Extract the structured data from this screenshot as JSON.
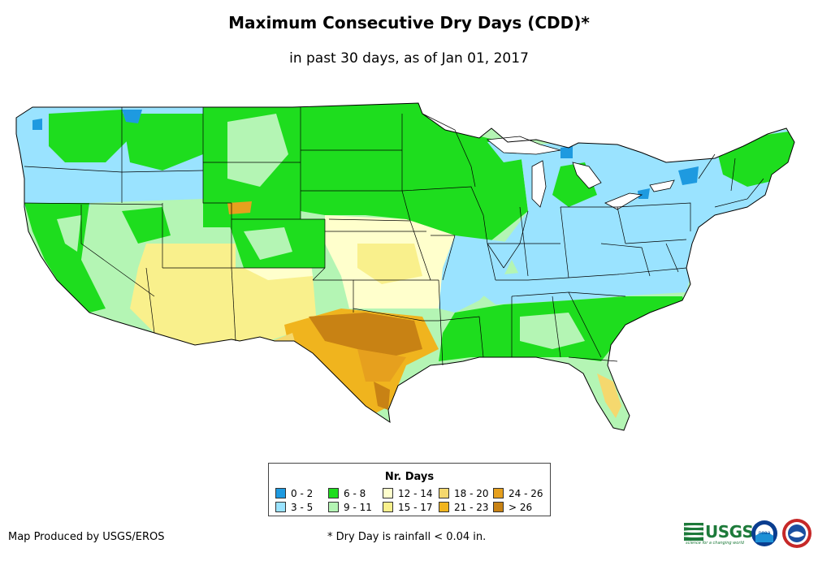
{
  "header": {
    "title": "Maximum Consecutive Dry Days (CDD)*",
    "subtitle": "in past 30 days, as of Jan 01, 2017"
  },
  "legend": {
    "title": "Nr. Days",
    "items": [
      {
        "label": "0 - 2",
        "color": "#1e9ae0"
      },
      {
        "label": "3 - 5",
        "color": "#9ae3ff"
      },
      {
        "label": "6 - 8",
        "color": "#1edd1e"
      },
      {
        "label": "9 - 11",
        "color": "#b4f5b4"
      },
      {
        "label": "12 - 14",
        "color": "#ffffcc"
      },
      {
        "label": "15 - 17",
        "color": "#f9f08c"
      },
      {
        "label": "18 - 20",
        "color": "#f5d86e"
      },
      {
        "label": "21 - 23",
        "color": "#f0b41e"
      },
      {
        "label": "24 - 26",
        "color": "#e6a01e"
      },
      {
        "label": "> 26",
        "color": "#c88214"
      }
    ]
  },
  "footer": {
    "credit": "Map Produced by USGS/EROS",
    "footnote": "* Dry Day is rainfall < 0.04 in.",
    "usgs_text": "USGS",
    "usgs_tagline": "science for a changing world",
    "noaa_text": "noaa"
  }
}
